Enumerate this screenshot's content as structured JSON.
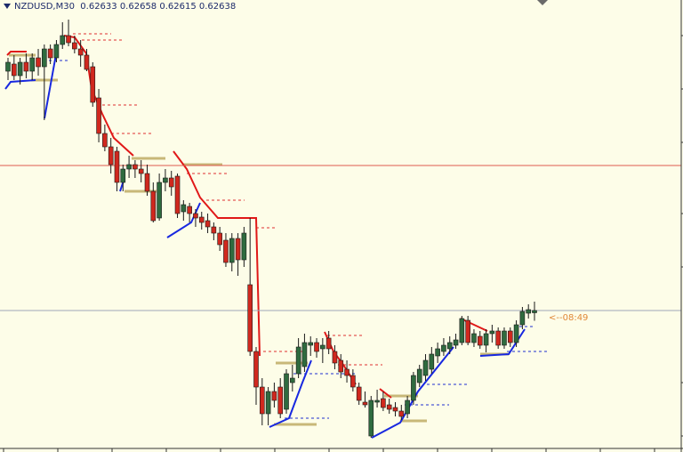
{
  "chart_data": {
    "type": "candlestick",
    "title": "NZDUSD,M30  0.62633 0.62658 0.62615 0.62638",
    "annotation": "<--08:49",
    "ylim": [
      0.62328,
      0.63336
    ],
    "up_color": "#2f6b3f",
    "down_color": "#d0281e",
    "levels": [
      0.62964
    ],
    "level_color": "#e05a50",
    "ohlc": [
      [
        0.63176,
        0.63206,
        0.63156,
        0.63196
      ],
      [
        0.63192,
        0.63212,
        0.63156,
        0.63166
      ],
      [
        0.63166,
        0.63206,
        0.63146,
        0.63196
      ],
      [
        0.63196,
        0.63216,
        0.6316,
        0.63176
      ],
      [
        0.63176,
        0.63216,
        0.63156,
        0.63206
      ],
      [
        0.63206,
        0.63226,
        0.63166,
        0.63186
      ],
      [
        0.63186,
        0.63236,
        0.63066,
        0.63226
      ],
      [
        0.63226,
        0.63236,
        0.63192,
        0.63206
      ],
      [
        0.63206,
        0.63246,
        0.63196,
        0.63236
      ],
      [
        0.63236,
        0.63286,
        0.63226,
        0.63256
      ],
      [
        0.63256,
        0.63292,
        0.63232,
        0.6324
      ],
      [
        0.6324,
        0.63256,
        0.63216,
        0.63226
      ],
      [
        0.63226,
        0.63246,
        0.63186,
        0.63212
      ],
      [
        0.63212,
        0.63226,
        0.63176,
        0.6318
      ],
      [
        0.63186,
        0.63196,
        0.63096,
        0.63106
      ],
      [
        0.63116,
        0.63136,
        0.63016,
        0.63036
      ],
      [
        0.63036,
        0.63056,
        0.62996,
        0.63006
      ],
      [
        0.63006,
        0.63026,
        0.62946,
        0.62966
      ],
      [
        0.62996,
        0.63006,
        0.62906,
        0.62926
      ],
      [
        0.62926,
        0.62966,
        0.62906,
        0.62956
      ],
      [
        0.62956,
        0.62986,
        0.62936,
        0.62966
      ],
      [
        0.62966,
        0.62976,
        0.62936,
        0.62956
      ],
      [
        0.62956,
        0.62976,
        0.62926,
        0.62946
      ],
      [
        0.62946,
        0.62966,
        0.62896,
        0.62906
      ],
      [
        0.62906,
        0.62926,
        0.62836,
        0.6284
      ],
      [
        0.62846,
        0.62946,
        0.6284,
        0.62926
      ],
      [
        0.62926,
        0.62956,
        0.62906,
        0.62936
      ],
      [
        0.62936,
        0.62952,
        0.62896,
        0.62916
      ],
      [
        0.6294,
        0.62946,
        0.62846,
        0.62856
      ],
      [
        0.6286,
        0.62886,
        0.6284,
        0.62876
      ],
      [
        0.62872,
        0.6288,
        0.62836,
        0.62856
      ],
      [
        0.62856,
        0.62866,
        0.62826,
        0.62846
      ],
      [
        0.62848,
        0.6286,
        0.6282,
        0.62836
      ],
      [
        0.6284,
        0.62856,
        0.62812,
        0.62826
      ],
      [
        0.62826,
        0.62836,
        0.62796,
        0.62812
      ],
      [
        0.62812,
        0.62826,
        0.62772,
        0.62786
      ],
      [
        0.62796,
        0.62812,
        0.62736,
        0.62746
      ],
      [
        0.62746,
        0.62812,
        0.62726,
        0.628
      ],
      [
        0.628,
        0.62812,
        0.62716,
        0.62752
      ],
      [
        0.62752,
        0.62826,
        0.62736,
        0.62812
      ],
      [
        0.62696,
        0.62846,
        0.62536,
        0.62546
      ],
      [
        0.62546,
        0.62556,
        0.62426,
        0.62466
      ],
      [
        0.62466,
        0.62486,
        0.6238,
        0.62406
      ],
      [
        0.62406,
        0.62466,
        0.6238,
        0.62456
      ],
      [
        0.62456,
        0.62476,
        0.6242,
        0.62436
      ],
      [
        0.62466,
        0.62486,
        0.62396,
        0.62406
      ],
      [
        0.62416,
        0.62506,
        0.62406,
        0.62496
      ],
      [
        0.62476,
        0.62516,
        0.62456,
        0.62486
      ],
      [
        0.62496,
        0.62576,
        0.62486,
        0.62556
      ],
      [
        0.62512,
        0.62586,
        0.625,
        0.62566
      ],
      [
        0.6256,
        0.6258,
        0.62536,
        0.62566
      ],
      [
        0.62566,
        0.62576,
        0.62532,
        0.62546
      ],
      [
        0.62552,
        0.62576,
        0.6252,
        0.6256
      ],
      [
        0.62576,
        0.62592,
        0.6254,
        0.62552
      ],
      [
        0.62546,
        0.6256,
        0.62506,
        0.6252
      ],
      [
        0.62526,
        0.6254,
        0.62486,
        0.625
      ],
      [
        0.62506,
        0.62526,
        0.62476,
        0.62492
      ],
      [
        0.62492,
        0.62506,
        0.62456,
        0.62466
      ],
      [
        0.62466,
        0.62476,
        0.62426,
        0.62436
      ],
      [
        0.62432,
        0.62456,
        0.6242,
        0.62426
      ],
      [
        0.62356,
        0.62446,
        0.62352,
        0.62436
      ],
      [
        0.62432,
        0.6246,
        0.6242,
        0.62436
      ],
      [
        0.6244,
        0.62456,
        0.62412,
        0.6242
      ],
      [
        0.62426,
        0.6244,
        0.62406,
        0.62416
      ],
      [
        0.6242,
        0.62432,
        0.624,
        0.62412
      ],
      [
        0.62412,
        0.62426,
        0.62392,
        0.624
      ],
      [
        0.62406,
        0.62446,
        0.62396,
        0.62436
      ],
      [
        0.62436,
        0.625,
        0.62426,
        0.62492
      ],
      [
        0.62476,
        0.62516,
        0.62466,
        0.62506
      ],
      [
        0.62492,
        0.6254,
        0.6248,
        0.62526
      ],
      [
        0.62506,
        0.62556,
        0.62496,
        0.6254
      ],
      [
        0.62536,
        0.62566,
        0.6252,
        0.62552
      ],
      [
        0.62546,
        0.62576,
        0.62536,
        0.6256
      ],
      [
        0.62552,
        0.6258,
        0.6254,
        0.62566
      ],
      [
        0.6256,
        0.62586,
        0.62552,
        0.62572
      ],
      [
        0.62566,
        0.62626,
        0.6256,
        0.6262
      ],
      [
        0.62616,
        0.62626,
        0.6256,
        0.62566
      ],
      [
        0.62566,
        0.62596,
        0.62556,
        0.62586
      ],
      [
        0.6258,
        0.62592,
        0.62552,
        0.6256
      ],
      [
        0.6256,
        0.62596,
        0.62544,
        0.62586
      ],
      [
        0.62586,
        0.62606,
        0.62566,
        0.62592
      ],
      [
        0.62592,
        0.626,
        0.62552,
        0.6256
      ],
      [
        0.6256,
        0.626,
        0.62552,
        0.62592
      ],
      [
        0.62592,
        0.626,
        0.62556,
        0.62566
      ],
      [
        0.62566,
        0.62616,
        0.62556,
        0.62606
      ],
      [
        0.62606,
        0.62646,
        0.62596,
        0.62636
      ],
      [
        0.62632,
        0.62652,
        0.6262,
        0.6264
      ],
      [
        0.62633,
        0.62658,
        0.62615,
        0.62638
      ]
    ]
  }
}
